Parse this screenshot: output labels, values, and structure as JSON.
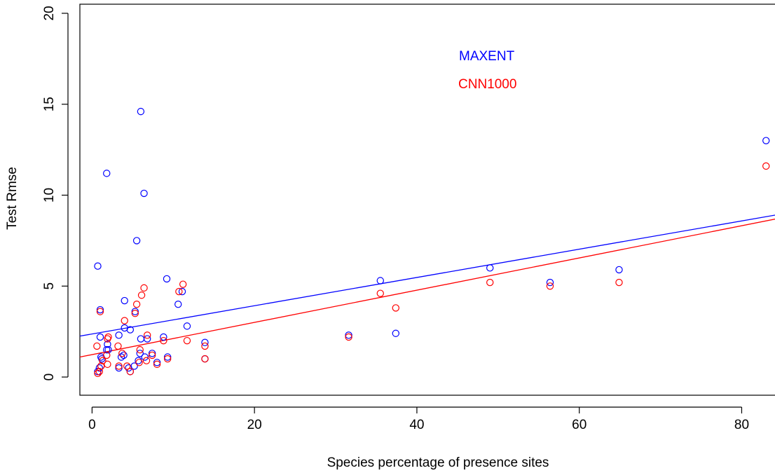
{
  "chart_data": {
    "type": "scatter",
    "xlabel": "Species percentage of presence sites",
    "ylabel": "Test Rmse",
    "xlim": [
      -1.5,
      86
    ],
    "ylim": [
      -1,
      20.5
    ],
    "x_ticks": [
      0,
      20,
      40,
      60,
      80
    ],
    "y_ticks": [
      0,
      5,
      10,
      15,
      20
    ],
    "grid": false,
    "legend_position": "top-center",
    "series": [
      {
        "name": "MAXENT",
        "color": "#0000ff",
        "points": [
          [
            0.7,
            6.1
          ],
          [
            0.7,
            0.3
          ],
          [
            0.9,
            0.5
          ],
          [
            1.0,
            2.2
          ],
          [
            1.0,
            3.7
          ],
          [
            1.1,
            1.1
          ],
          [
            1.1,
            0.6
          ],
          [
            1.2,
            1.0
          ],
          [
            1.8,
            11.2
          ],
          [
            1.8,
            1.5
          ],
          [
            1.9,
            1.8
          ],
          [
            2.0,
            1.5
          ],
          [
            3.3,
            2.3
          ],
          [
            3.3,
            0.5
          ],
          [
            3.6,
            1.1
          ],
          [
            3.9,
            1.2
          ],
          [
            4.0,
            4.2
          ],
          [
            4.0,
            2.7
          ],
          [
            4.5,
            0.5
          ],
          [
            4.7,
            0.3
          ],
          [
            4.7,
            2.6
          ],
          [
            5.2,
            0.6
          ],
          [
            5.3,
            3.6
          ],
          [
            5.5,
            7.5
          ],
          [
            5.7,
            0.9
          ],
          [
            5.9,
            1.3
          ],
          [
            6.0,
            14.6
          ],
          [
            6.0,
            2.1
          ],
          [
            6.4,
            10.1
          ],
          [
            6.5,
            1.1
          ],
          [
            6.8,
            2.1
          ],
          [
            7.4,
            1.3
          ],
          [
            8.0,
            0.8
          ],
          [
            8.8,
            2.2
          ],
          [
            9.2,
            5.4
          ],
          [
            9.3,
            1.1
          ],
          [
            10.6,
            4.0
          ],
          [
            11.1,
            4.7
          ],
          [
            11.7,
            2.8
          ],
          [
            13.9,
            1.9
          ],
          [
            13.9,
            1.0
          ],
          [
            31.6,
            2.3
          ],
          [
            35.5,
            5.3
          ],
          [
            37.4,
            2.4
          ],
          [
            49.0,
            6.0
          ],
          [
            56.4,
            5.2
          ],
          [
            64.9,
            5.9
          ],
          [
            83.0,
            13.0
          ]
        ],
        "fit_line": [
          [
            -1.5,
            2.25
          ],
          [
            86,
            9.05
          ]
        ]
      },
      {
        "name": "CNN1000",
        "color": "#ff0000",
        "points": [
          [
            0.6,
            1.7
          ],
          [
            0.7,
            0.2
          ],
          [
            0.9,
            0.3
          ],
          [
            1.0,
            3.6
          ],
          [
            1.1,
            0.6
          ],
          [
            1.3,
            0.9
          ],
          [
            1.8,
            1.2
          ],
          [
            1.9,
            0.7
          ],
          [
            1.9,
            2.1
          ],
          [
            2.0,
            2.2
          ],
          [
            3.2,
            1.7
          ],
          [
            3.3,
            0.6
          ],
          [
            3.7,
            1.3
          ],
          [
            4.0,
            3.1
          ],
          [
            4.3,
            0.6
          ],
          [
            4.7,
            0.3
          ],
          [
            5.3,
            3.5
          ],
          [
            5.5,
            4.0
          ],
          [
            5.8,
            0.8
          ],
          [
            5.9,
            1.5
          ],
          [
            6.1,
            4.5
          ],
          [
            6.4,
            4.9
          ],
          [
            6.7,
            0.9
          ],
          [
            6.8,
            2.3
          ],
          [
            7.4,
            1.2
          ],
          [
            8.0,
            0.7
          ],
          [
            8.8,
            2.0
          ],
          [
            9.3,
            1.0
          ],
          [
            10.7,
            4.7
          ],
          [
            11.2,
            5.1
          ],
          [
            11.7,
            2.0
          ],
          [
            13.9,
            1.7
          ],
          [
            13.9,
            1.0
          ],
          [
            31.6,
            2.2
          ],
          [
            35.5,
            4.6
          ],
          [
            37.4,
            3.8
          ],
          [
            49.0,
            5.2
          ],
          [
            56.4,
            5.0
          ],
          [
            64.9,
            5.2
          ],
          [
            83.0,
            11.6
          ]
        ],
        "fit_line": [
          [
            -1.5,
            1.1
          ],
          [
            86,
            8.85
          ]
        ]
      }
    ]
  }
}
